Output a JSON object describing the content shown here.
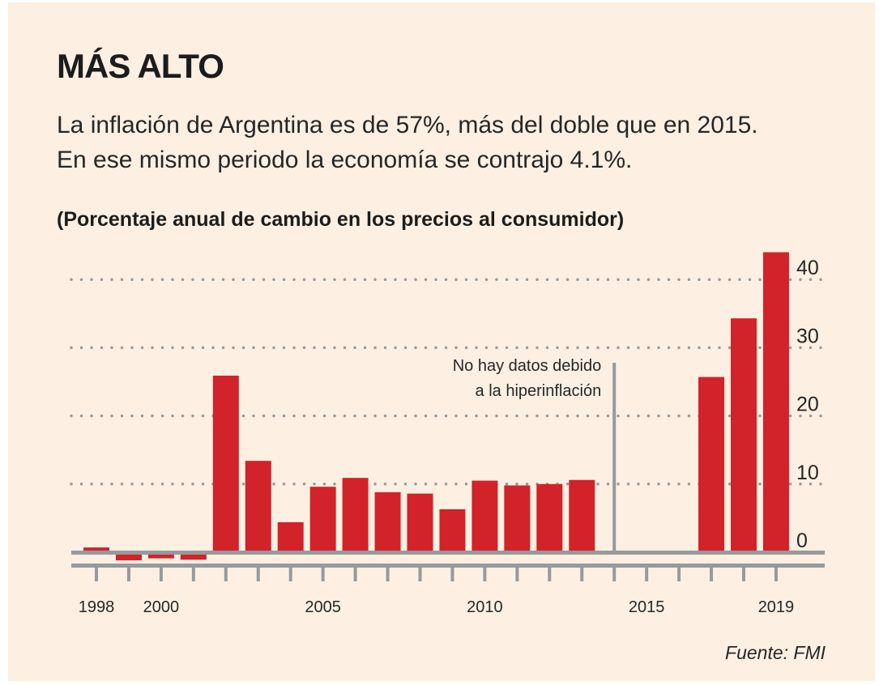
{
  "header": {
    "title": "MÁS ALTO",
    "subtitle_line1": "La inflación de Argentina es de 57%, más del doble que en 2015.",
    "subtitle_line2": "En ese mismo periodo la economía se contrajo 4.1%."
  },
  "source": "Fuente: FMI",
  "colors": {
    "bar": "#d2222a",
    "background": "#fdf0e2",
    "axis": "#97999c",
    "text": "#262626"
  },
  "chart_data": {
    "type": "bar",
    "title": "(Porcentaje anual de cambio en los precios al consumidor)",
    "xlabel": "",
    "ylabel": "",
    "ylim": [
      -2,
      44
    ],
    "yticks": [
      0,
      10,
      20,
      30,
      40
    ],
    "grid": "horizontal dotted",
    "y_axis_side": "right",
    "categories": [
      1998,
      1999,
      2000,
      2001,
      2002,
      2003,
      2004,
      2005,
      2006,
      2007,
      2008,
      2009,
      2010,
      2011,
      2012,
      2013,
      2014,
      2015,
      2016,
      2017,
      2018,
      2019
    ],
    "xtick_labels": [
      {
        "year": 1998,
        "label": "1998"
      },
      {
        "year": 2000,
        "label": "2000"
      },
      {
        "year": 2005,
        "label": "2005"
      },
      {
        "year": 2010,
        "label": "2010"
      },
      {
        "year": 2015,
        "label": "2015"
      },
      {
        "year": 2019,
        "label": "2019"
      }
    ],
    "values": [
      0.7,
      -1.2,
      -0.9,
      -1.1,
      25.9,
      13.4,
      4.4,
      9.6,
      10.9,
      8.8,
      8.6,
      6.3,
      10.5,
      9.8,
      10.0,
      10.6,
      null,
      null,
      null,
      25.7,
      34.3,
      44.0
    ],
    "annotations": [
      {
        "year": 2014,
        "lines": [
          "No hay datos debido",
          "a la hiperinflación"
        ]
      }
    ]
  }
}
